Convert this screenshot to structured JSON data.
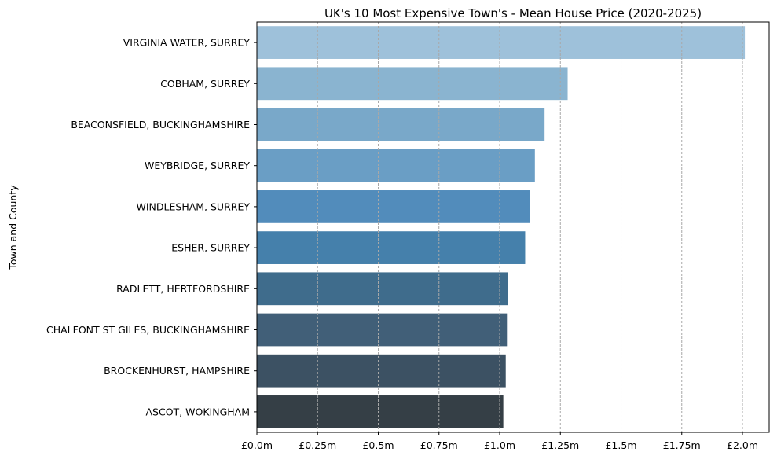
{
  "chart_data": {
    "type": "bar",
    "orientation": "horizontal",
    "title": "UK's 10 Most Expensive Town's - Mean House Price (2020-2025)",
    "xlabel": "",
    "ylabel": "Town and County",
    "xlim": [
      0,
      2.11
    ],
    "xticks": [
      0,
      0.25,
      0.5,
      0.75,
      1.0,
      1.25,
      1.5,
      1.75,
      2.0
    ],
    "xtick_labels": [
      "£0.0m",
      "£0.25m",
      "£0.5m",
      "£0.75m",
      "£1.0m",
      "£1.25m",
      "£1.5m",
      "£1.75m",
      "£2.0m"
    ],
    "grid": "x-dashed",
    "categories": [
      "VIRGINIA WATER, SURREY",
      "COBHAM, SURREY",
      "BEACONSFIELD, BUCKINGHAMSHIRE",
      "WEYBRIDGE, SURREY",
      "WINDLESHAM, SURREY",
      "ESHER, SURREY",
      "RADLETT, HERTFORDSHIRE",
      "CHALFONT ST GILES, BUCKINGHAMSHIRE",
      "BROCKENHURST, HAMPSHIRE",
      "ASCOT, WOKINGHAM"
    ],
    "values": [
      2.01,
      1.28,
      1.185,
      1.145,
      1.125,
      1.105,
      1.035,
      1.03,
      1.025,
      1.015
    ],
    "colors": [
      "#9ec1da",
      "#8ab4d0",
      "#79a8c9",
      "#6a9ec5",
      "#528cbb",
      "#4580ab",
      "#3f6c8c",
      "#415f78",
      "#3c5163",
      "#353f46"
    ]
  }
}
